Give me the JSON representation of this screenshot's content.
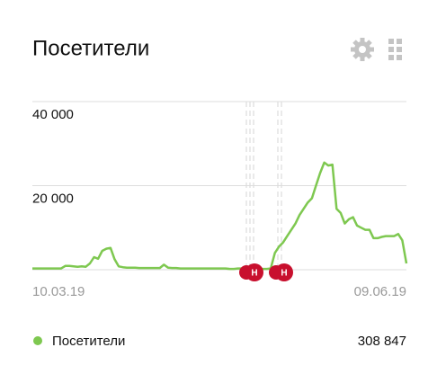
{
  "chart_data": {
    "type": "line",
    "title": "Посетители",
    "categories": [
      "10.03.19",
      null,
      null,
      null,
      null,
      null,
      null,
      null,
      null,
      null,
      null,
      null,
      null,
      null,
      null,
      null,
      null,
      null,
      null,
      null,
      null,
      null,
      null,
      null,
      null,
      null,
      null,
      null,
      null,
      null,
      null,
      null,
      null,
      null,
      null,
      null,
      null,
      null,
      null,
      null,
      null,
      null,
      null,
      null,
      null,
      null,
      null,
      null,
      null,
      null,
      null,
      null,
      null,
      null,
      null,
      null,
      null,
      null,
      null,
      null,
      null,
      null,
      null,
      null,
      null,
      null,
      null,
      null,
      null,
      null,
      null,
      null,
      null,
      null,
      null,
      null,
      null,
      null,
      null,
      null,
      null,
      null,
      null,
      null,
      null,
      null,
      null,
      null,
      null,
      null,
      null,
      "09.06.19"
    ],
    "series": [
      {
        "name": "Посетители",
        "color": "#7ec850",
        "values": [
          300,
          300,
          300,
          300,
          300,
          300,
          300,
          300,
          900,
          900,
          800,
          700,
          800,
          700,
          1500,
          3000,
          2600,
          4500,
          5000,
          5200,
          2500,
          800,
          600,
          500,
          500,
          500,
          400,
          400,
          400,
          400,
          400,
          400,
          1200,
          500,
          400,
          400,
          300,
          300,
          300,
          300,
          300,
          300,
          300,
          300,
          300,
          300,
          300,
          300,
          200,
          200,
          300,
          300,
          300,
          300,
          300,
          300,
          200,
          200,
          300,
          4000,
          5500,
          6500,
          8000,
          9500,
          11000,
          13000,
          14500,
          16000,
          17000,
          20000,
          23000,
          25500,
          24800,
          25000,
          14500,
          13500,
          11000,
          12000,
          12500,
          10500,
          10000,
          9500,
          9500,
          7500,
          7500,
          7800,
          8000,
          8000,
          8000,
          8500,
          7000,
          1500
        ]
      }
    ],
    "ylim": [
      0,
      40000
    ],
    "yticks": [
      {
        "value": 40000,
        "label": "40 000"
      },
      {
        "value": 20000,
        "label": "20 000"
      }
    ],
    "grid": true,
    "annotations": [
      "Н",
      "Н"
    ],
    "total": {
      "value": 308847,
      "label": "308 847"
    }
  }
}
